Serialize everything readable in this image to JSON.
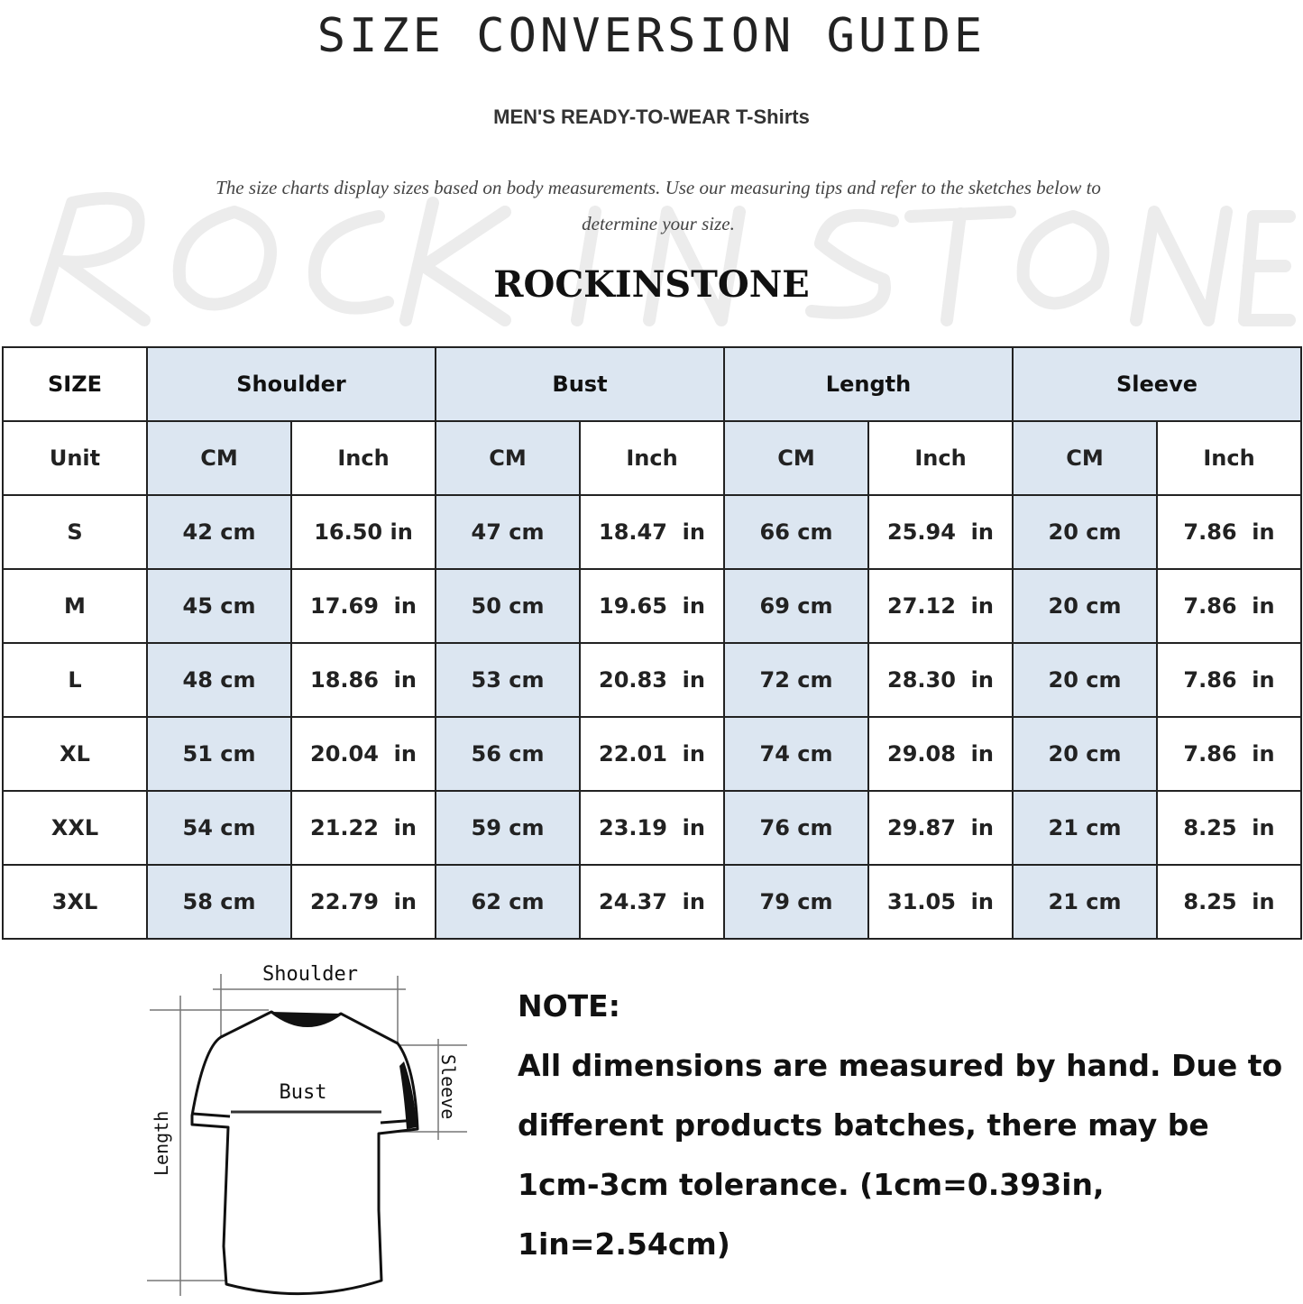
{
  "header": {
    "title": "SIZE CONVERSION GUIDE",
    "subtitle": "MEN'S READY-TO-WEAR T-Shirts",
    "description": "The size charts display sizes based on body measurements. Use our measuring tips and refer to the sketches below to determine your size.",
    "watermark": "ROCK IN STONE",
    "brand": "ROCKINSTONE"
  },
  "table": {
    "size_label": "SIZE",
    "unit_label": "Unit",
    "groups": [
      "Shoulder",
      "Bust",
      "Length",
      "Sleeve"
    ],
    "units": [
      "CM",
      "Inch",
      "CM",
      "Inch",
      "CM",
      "Inch",
      "CM",
      "Inch"
    ],
    "rows": [
      {
        "size": "S",
        "values": [
          "42 cm",
          "16.50 in",
          "47 cm",
          "18.47  in",
          "66 cm",
          "25.94  in",
          "20 cm",
          "7.86  in"
        ]
      },
      {
        "size": "M",
        "values": [
          "45 cm",
          "17.69  in",
          "50 cm",
          "19.65  in",
          "69 cm",
          "27.12  in",
          "20 cm",
          "7.86  in"
        ]
      },
      {
        "size": "L",
        "values": [
          "48 cm",
          "18.86  in",
          "53 cm",
          "20.83  in",
          "72 cm",
          "28.30  in",
          "20 cm",
          "7.86  in"
        ]
      },
      {
        "size": "XL",
        "values": [
          "51 cm",
          "20.04  in",
          "56 cm",
          "22.01  in",
          "74 cm",
          "29.08  in",
          "20 cm",
          "7.86  in"
        ]
      },
      {
        "size": "XXL",
        "values": [
          "54 cm",
          "21.22  in",
          "59 cm",
          "23.19  in",
          "76 cm",
          "29.87  in",
          "21 cm",
          "8.25  in"
        ]
      },
      {
        "size": "3XL",
        "values": [
          "58 cm",
          "22.79  in",
          "62 cm",
          "24.37  in",
          "79 cm",
          "31.05  in",
          "21 cm",
          "8.25  in"
        ]
      }
    ],
    "colors": {
      "highlight": "#dce6f1",
      "border": "#222222"
    }
  },
  "diagram": {
    "shoulder": "Shoulder",
    "bust": "Bust",
    "sleeve": "Sleeve",
    "length": "Length"
  },
  "note": {
    "heading": "NOTE:",
    "text": "All dimensions are measured by hand. Due to different products batches, there may be 1cm-3cm tolerance. (1cm=0.393in, 1in=2.54cm)"
  }
}
